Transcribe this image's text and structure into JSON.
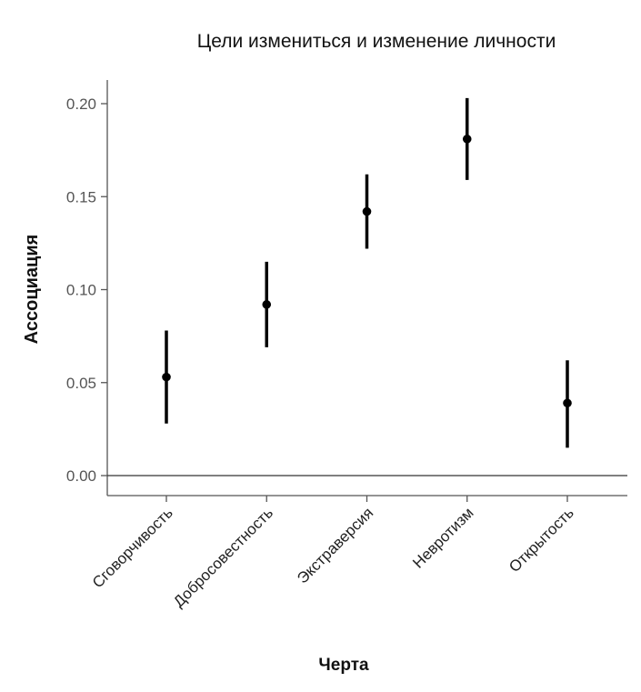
{
  "chart_data": {
    "type": "scatter",
    "title": "Цели измениться и изменение личности",
    "xlabel": "Черта",
    "ylabel": "Ассоциация",
    "categories": [
      "Сговорчивость",
      "Добросовестность",
      "Экстраверсия",
      "Невротизм",
      "Открытость"
    ],
    "values": [
      0.053,
      0.092,
      0.142,
      0.181,
      0.039
    ],
    "ci_lower": [
      0.028,
      0.069,
      0.122,
      0.159,
      0.015
    ],
    "ci_upper": [
      0.078,
      0.115,
      0.162,
      0.203,
      0.062
    ],
    "ylim": [
      -0.01,
      0.205
    ],
    "yticks": [
      "0.00",
      "0.05",
      "0.10",
      "0.15",
      "0.20"
    ],
    "ytick_values": [
      0.0,
      0.05,
      0.1,
      0.15,
      0.2
    ],
    "reference_line_y": 0.0,
    "grid": false,
    "point_color": "#000000",
    "axis_color": "#555555"
  }
}
